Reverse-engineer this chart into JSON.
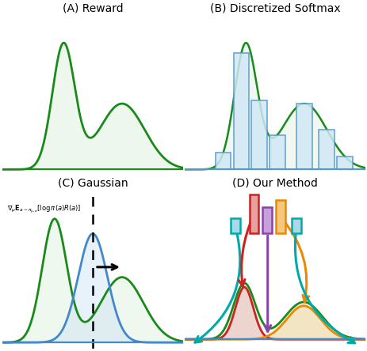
{
  "title_A": "(A) Reward",
  "title_B": "(B) Discretized Softmax",
  "title_C": "(C) Gaussian",
  "title_D": "(D) Our Method",
  "green_line_color": "#1a8a1a",
  "green_fill_color": "#c8e6c8",
  "blue_line_color": "#4488cc",
  "blue_fill_color": "#c5ddf5",
  "teal_color": "#00aaaa",
  "red_color": "#cc2222",
  "orange_color": "#ee8800",
  "purple_color": "#8844aa",
  "bar_blue_fill": "#d0e8f5",
  "bar_blue_edge": "#5599cc",
  "background": "#ffffff"
}
